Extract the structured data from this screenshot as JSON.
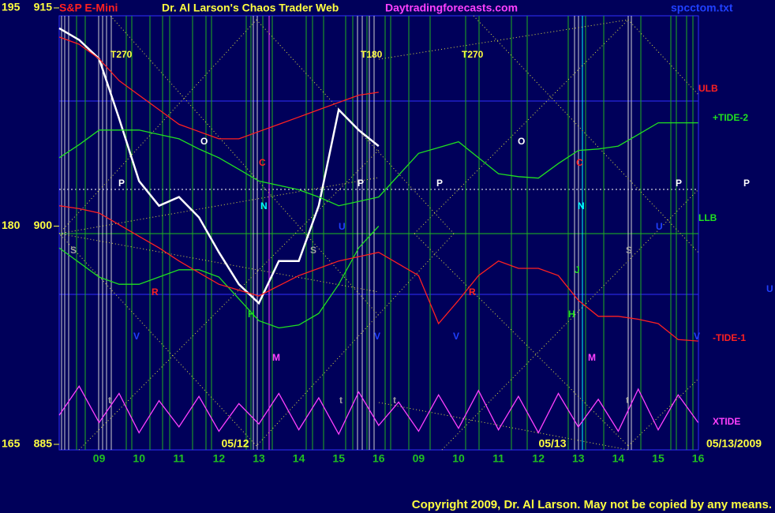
{
  "chart_data": {
    "type": "line",
    "title": "Dr. Al Larson's Chaos Trader Web",
    "instrument": "S&P E-Mini",
    "site": "Daytradingforecasts.com",
    "file": "spcctom.txt",
    "copyright": "Copyright 2009, Dr. Al Larson. May not be copied by any means.",
    "categories": [
      null,
      null,
      "09",
      null,
      "10",
      null,
      "11",
      null,
      "12",
      null,
      "13",
      null,
      "14",
      null,
      "15",
      null,
      "16",
      null,
      "09",
      null,
      "10",
      null,
      "11",
      null,
      "12",
      null,
      "13",
      null,
      "14",
      null,
      "15",
      null,
      "16"
    ],
    "date_labels": [
      "05/12",
      "05/13",
      "05/13/2009"
    ],
    "ylim": [
      885,
      915
    ],
    "yticks": [
      885,
      900,
      915
    ],
    "y2lim": [
      165,
      195
    ],
    "y2ticks": [
      165,
      180,
      195
    ],
    "grid": false,
    "series": [
      {
        "name": "S&P E-Mini",
        "color": "#ffffff",
        "values": [
          913.6,
          912.8,
          911.5,
          907.4,
          903.1,
          901.4,
          902,
          900.6,
          898.2,
          896,
          894.7,
          897.6,
          897.6,
          901.4,
          908,
          906.6,
          905.5,
          null,
          null,
          null,
          null,
          null,
          null,
          null,
          null,
          null,
          null,
          null,
          null,
          null,
          null,
          null,
          null
        ]
      },
      {
        "name": "ULB",
        "color": "#ff2020",
        "values": [
          913,
          912.5,
          911.5,
          910,
          909,
          908,
          907,
          906.5,
          906,
          906,
          906.5,
          907,
          907.5,
          908,
          908.5,
          909,
          909.2,
          null,
          null,
          null,
          null,
          null,
          null,
          null,
          null,
          null,
          null,
          null,
          null,
          null,
          null,
          null,
          null
        ]
      },
      {
        "name": "+TIDE-2",
        "color": "#20e020",
        "values": [
          904.7,
          905.6,
          906.6,
          906.6,
          906.6,
          906.3,
          906,
          905.3,
          904.7,
          903.9,
          903.1,
          902.8,
          902.5,
          902,
          901.4,
          901.7,
          902,
          903.5,
          905,
          905.4,
          905.8,
          904.7,
          903.6,
          903.4,
          903.3,
          904.3,
          905.2,
          905.3,
          905.5,
          906.3,
          907.1,
          907.1,
          907.1
        ]
      },
      {
        "name": "LLB",
        "color": "#20e020",
        "values": [
          898.5,
          897.5,
          896.5,
          896,
          896,
          896.5,
          897,
          897,
          896.5,
          895,
          893.5,
          893,
          893.2,
          894,
          896,
          898.5,
          900,
          null,
          null,
          null,
          null,
          null,
          null,
          null,
          null,
          null,
          null,
          null,
          null,
          null,
          null,
          null,
          null
        ]
      },
      {
        "name": "-TIDE-1",
        "color": "#ff2020",
        "values": [
          901.4,
          901.2,
          900.9,
          900.1,
          899.3,
          898.5,
          897.6,
          896.8,
          896,
          895.6,
          895.2,
          895.9,
          896.6,
          897.1,
          897.6,
          897.9,
          898.2,
          897.4,
          896.6,
          893.3,
          894.9,
          896.6,
          897.6,
          897.1,
          897.1,
          896.6,
          894.9,
          893.8,
          893.8,
          893.6,
          893.3,
          892.2,
          892.1
        ]
      },
      {
        "name": "XTIDE",
        "color": "#ff40ff",
        "values": [
          887,
          889,
          886.5,
          888.5,
          885.8,
          888,
          886.2,
          888.3,
          885.9,
          887.8,
          886.4,
          888.5,
          886,
          888.2,
          885.7,
          888.6,
          886.3,
          887.9,
          885.9,
          888.4,
          886.1,
          888.7,
          886,
          888.3,
          885.8,
          888.5,
          886.2,
          888.1,
          885.9,
          888.8,
          886,
          888.4,
          886.5
        ]
      }
    ],
    "annotations": [
      {
        "text": "T270",
        "color": "#ffff40"
      },
      {
        "text": "T180",
        "color": "#ffff40"
      },
      {
        "text": "T270",
        "color": "#ffff40"
      },
      {
        "text": "O",
        "color": "#ffffff"
      },
      {
        "text": "O",
        "color": "#ffffff"
      },
      {
        "text": "P",
        "color": "#ffffff"
      },
      {
        "text": "P",
        "color": "#ffffff"
      },
      {
        "text": "P",
        "color": "#ffffff"
      },
      {
        "text": "P",
        "color": "#ffffff"
      },
      {
        "text": "P",
        "color": "#ffffff"
      },
      {
        "text": "C",
        "color": "#ff2020"
      },
      {
        "text": "C",
        "color": "#ff2020"
      },
      {
        "text": "N",
        "color": "#00ffff"
      },
      {
        "text": "N",
        "color": "#00ffff"
      },
      {
        "text": "S",
        "color": "#a0a0a0"
      },
      {
        "text": "S",
        "color": "#a0a0a0"
      },
      {
        "text": "S",
        "color": "#a0a0a0"
      },
      {
        "text": "R",
        "color": "#ff2020"
      },
      {
        "text": "R",
        "color": "#ff2020"
      },
      {
        "text": "H",
        "color": "#20e020"
      },
      {
        "text": "H",
        "color": "#20e020"
      },
      {
        "text": "J",
        "color": "#20e020"
      },
      {
        "text": "V",
        "color": "#2040ff"
      },
      {
        "text": "V",
        "color": "#2040ff"
      },
      {
        "text": "V",
        "color": "#2040ff"
      },
      {
        "text": "V",
        "color": "#2040ff"
      },
      {
        "text": "M",
        "color": "#ff40ff"
      },
      {
        "text": "M",
        "color": "#ff40ff"
      },
      {
        "text": "U",
        "color": "#2040ff"
      },
      {
        "text": "U",
        "color": "#2040ff"
      },
      {
        "text": "U",
        "color": "#2040ff"
      },
      {
        "text": "t",
        "color": "#a0a0a0"
      },
      {
        "text": "t",
        "color": "#a0a0a0"
      },
      {
        "text": "t",
        "color": "#a0a0a0"
      },
      {
        "text": "t",
        "color": "#a0a0a0"
      }
    ]
  }
}
